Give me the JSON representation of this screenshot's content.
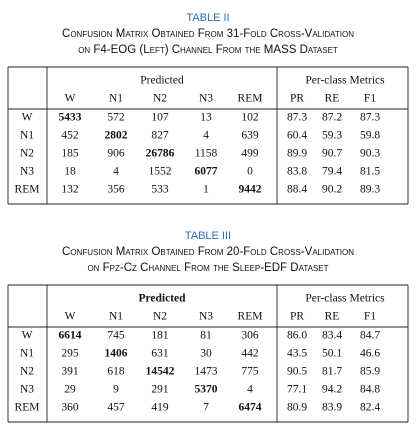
{
  "tables": [
    {
      "label": "TABLE II",
      "caption": [
        "Confusion Matrix Obtained From 31-Fold Cross-Validation",
        "on F4-EOG (Left) Channel From the MASS Dataset"
      ],
      "groups": [
        "Predicted",
        "Per-class Metrics"
      ],
      "group_bold": false,
      "columns": [
        "W",
        "N1",
        "N2",
        "N3",
        "REM",
        "PR",
        "RE",
        "F1"
      ],
      "diagonal_bold": true,
      "rows": [
        {
          "label": "W",
          "cells": [
            "5433",
            "572",
            "107",
            "13",
            "102",
            "87.3",
            "87.2",
            "87.3"
          ]
        },
        {
          "label": "N1",
          "cells": [
            "452",
            "2802",
            "827",
            "4",
            "639",
            "60.4",
            "59.3",
            "59.8"
          ]
        },
        {
          "label": "N2",
          "cells": [
            "185",
            "906",
            "26786",
            "1158",
            "499",
            "89.9",
            "90.7",
            "90.3"
          ]
        },
        {
          "label": "N3",
          "cells": [
            "18",
            "4",
            "1552",
            "6077",
            "0",
            "83.8",
            "79.4",
            "81.5"
          ]
        },
        {
          "label": "REM",
          "cells": [
            "132",
            "356",
            "533",
            "1",
            "9442",
            "88.4",
            "90.2",
            "89.3"
          ]
        }
      ]
    },
    {
      "label": "TABLE III",
      "caption": [
        "Confusion Matrix Obtained From 20-Fold Cross-Validation",
        "on Fpz-Cz Channel From the Sleep-EDF Dataset"
      ],
      "groups": [
        "Predicted",
        "Per-class Metrics"
      ],
      "group_bold": true,
      "columns": [
        "W",
        "N1",
        "N2",
        "N3",
        "REM",
        "PR",
        "RE",
        "F1"
      ],
      "diagonal_bold": true,
      "rows": [
        {
          "label": "W",
          "cells": [
            "6614",
            "745",
            "181",
            "81",
            "306",
            "86.0",
            "83.4",
            "84.7"
          ]
        },
        {
          "label": "N1",
          "cells": [
            "295",
            "1406",
            "631",
            "30",
            "442",
            "43.5",
            "50.1",
            "46.6"
          ]
        },
        {
          "label": "N2",
          "cells": [
            "391",
            "618",
            "14542",
            "1473",
            "775",
            "90.5",
            "81.7",
            "85.9"
          ]
        },
        {
          "label": "N3",
          "cells": [
            "29",
            "9",
            "291",
            "5370",
            "4",
            "77.1",
            "94.2",
            "84.8"
          ]
        },
        {
          "label": "REM",
          "cells": [
            "360",
            "457",
            "419",
            "7",
            "6474",
            "80.9",
            "83.9",
            "82.4"
          ]
        }
      ]
    }
  ]
}
